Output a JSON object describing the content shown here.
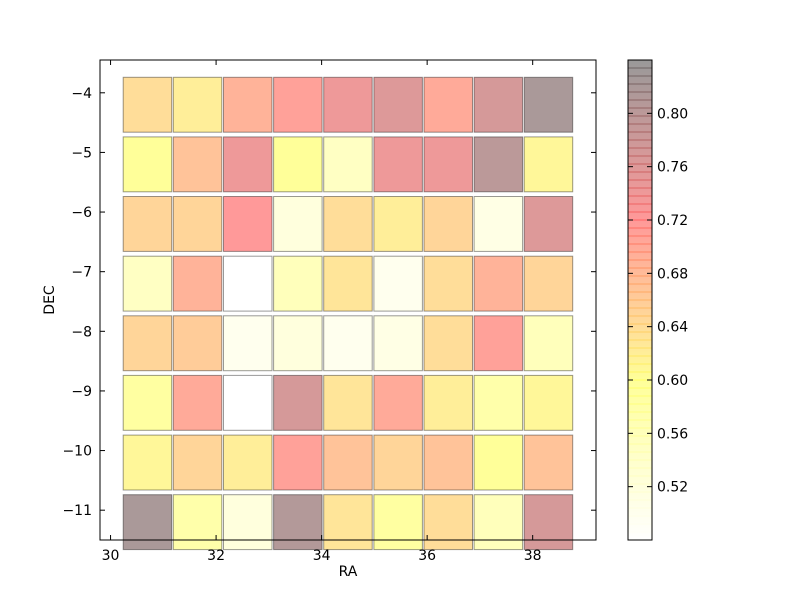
{
  "chart_data": {
    "type": "heatmap",
    "xlabel": "RA",
    "ylabel": "DEC",
    "xlim": [
      29.8,
      39.2
    ],
    "ylim": [
      -11.5,
      -3.45
    ],
    "x_ticks": [
      30,
      32,
      34,
      36,
      38
    ],
    "y_ticks": [
      -4,
      -5,
      -6,
      -7,
      -8,
      -9,
      -10,
      -11
    ],
    "x_tick_labels": [
      "30",
      "32",
      "34",
      "36",
      "38"
    ],
    "y_tick_labels": [
      "−4",
      "−5",
      "−6",
      "−7",
      "−8",
      "−9",
      "−10",
      "−11"
    ],
    "x_centers": [
      30.7,
      31.65,
      32.6,
      33.55,
      34.5,
      35.45,
      36.4,
      37.35,
      38.3
    ],
    "y_centers": [
      -4.2,
      -5.2,
      -6.2,
      -7.2,
      -8.2,
      -9.2,
      -10.2,
      -11.2
    ],
    "cell_size": 0.92,
    "values": [
      [
        0.64,
        0.62,
        0.69,
        0.71,
        0.74,
        0.76,
        0.7,
        0.77,
        0.82
      ],
      [
        0.6,
        0.67,
        0.74,
        0.6,
        0.55,
        0.74,
        0.74,
        0.8,
        0.61
      ],
      [
        0.65,
        0.65,
        0.72,
        0.52,
        0.64,
        0.62,
        0.65,
        0.51,
        0.76
      ],
      [
        0.55,
        0.69,
        0.47,
        0.56,
        0.63,
        0.5,
        0.64,
        0.69,
        0.65
      ],
      [
        0.65,
        0.66,
        0.5,
        0.52,
        0.5,
        0.51,
        0.64,
        0.71,
        0.56
      ],
      [
        0.59,
        0.7,
        0.48,
        0.77,
        0.63,
        0.7,
        0.62,
        0.58,
        0.61
      ],
      [
        0.61,
        0.65,
        0.62,
        0.71,
        0.67,
        0.65,
        0.67,
        0.6,
        0.67
      ],
      [
        0.82,
        0.58,
        0.52,
        0.81,
        0.63,
        0.59,
        0.64,
        0.56,
        0.77
      ]
    ],
    "colorbar": {
      "range": [
        0.48,
        0.84
      ],
      "ticks": [
        0.52,
        0.56,
        0.6,
        0.64,
        0.68,
        0.72,
        0.76,
        0.8
      ],
      "tick_labels": [
        "0.52",
        "0.56",
        "0.60",
        "0.64",
        "0.68",
        "0.72",
        "0.76",
        "0.80"
      ],
      "colors": [
        "#ffffff",
        "#ffff00",
        "#ff0000",
        "#000000"
      ]
    },
    "grid": false,
    "cell_alpha": 0.4
  }
}
